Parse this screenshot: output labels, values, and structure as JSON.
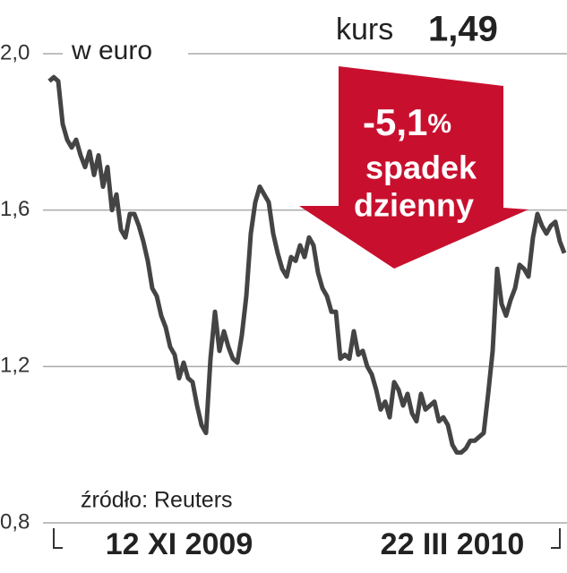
{
  "chart_data": {
    "type": "line",
    "unit_label": "w euro",
    "current_label": "kurs",
    "current_value": "1,49",
    "annotation": {
      "change": "-5,1",
      "change_unit": "%",
      "line1": "spadek",
      "line2": "dzienny"
    },
    "source": "źródło: Reuters",
    "color": "#444444",
    "values": [
      1.93,
      1.94,
      1.93,
      1.82,
      1.78,
      1.76,
      1.78,
      1.74,
      1.71,
      1.75,
      1.69,
      1.74,
      1.66,
      1.71,
      1.6,
      1.64,
      1.55,
      1.53,
      1.59,
      1.59,
      1.56,
      1.52,
      1.47,
      1.4,
      1.38,
      1.33,
      1.3,
      1.25,
      1.23,
      1.17,
      1.21,
      1.17,
      1.16,
      1.1,
      1.05,
      1.03,
      1.22,
      1.34,
      1.24,
      1.29,
      1.25,
      1.22,
      1.21,
      1.28,
      1.38,
      1.54,
      1.62,
      1.66,
      1.64,
      1.62,
      1.54,
      1.49,
      1.45,
      1.43,
      1.48,
      1.47,
      1.51,
      1.48,
      1.53,
      1.51,
      1.44,
      1.4,
      1.38,
      1.34,
      1.34,
      1.22,
      1.23,
      1.22,
      1.29,
      1.23,
      1.24,
      1.2,
      1.18,
      1.14,
      1.09,
      1.11,
      1.07,
      1.16,
      1.14,
      1.1,
      1.13,
      1.08,
      1.06,
      1.13,
      1.09,
      1.1,
      1.11,
      1.06,
      1.07,
      1.05,
      1.0,
      0.98,
      0.98,
      0.99,
      1.01,
      1.01,
      1.02,
      1.03,
      1.13,
      1.24,
      1.45,
      1.36,
      1.33,
      1.37,
      1.4,
      1.46,
      1.45,
      1.43,
      1.53,
      1.59,
      1.56,
      1.54,
      1.56,
      1.57,
      1.52,
      1.49
    ],
    "xlim": [
      0,
      115
    ],
    "xticks": [
      {
        "value": 29,
        "label": "12 XI 2009"
      },
      {
        "value": 90,
        "label": "22 III 2010"
      }
    ],
    "ylim": [
      0.8,
      2.0
    ],
    "yticks": [
      {
        "value": 0.8,
        "label": "0,8"
      },
      {
        "value": 1.2,
        "label": "1,2"
      },
      {
        "value": 1.6,
        "label": "1,6"
      },
      {
        "value": 2.0,
        "label": "2,0"
      }
    ],
    "grid": true
  }
}
